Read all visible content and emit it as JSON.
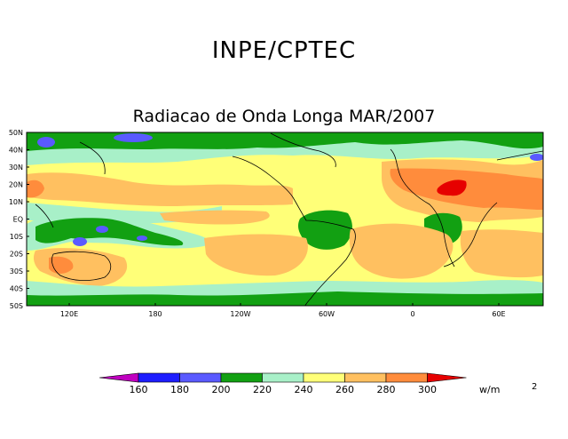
{
  "header": {
    "title": "INPE/CPTEC"
  },
  "map": {
    "title": "Radiacao de Onda Longa MAR/2007",
    "lat_labels": [
      "50N",
      "40N",
      "30N",
      "20N",
      "10N",
      "EQ",
      "10S",
      "20S",
      "30S",
      "40S",
      "50S"
    ],
    "lon_labels": [
      "120E",
      "180",
      "120W",
      "60W",
      "0",
      "60E"
    ]
  },
  "legend": {
    "values": [
      "160",
      "180",
      "200",
      "220",
      "240",
      "260",
      "280",
      "300"
    ],
    "unit": "w/m",
    "unit_exp": "2",
    "colors": [
      "#c000c0",
      "#1e1eff",
      "#5a5aff",
      "#12a012",
      "#a8f0c8",
      "#ffff78",
      "#ffc060",
      "#ff8c3c",
      "#e60000"
    ]
  }
}
